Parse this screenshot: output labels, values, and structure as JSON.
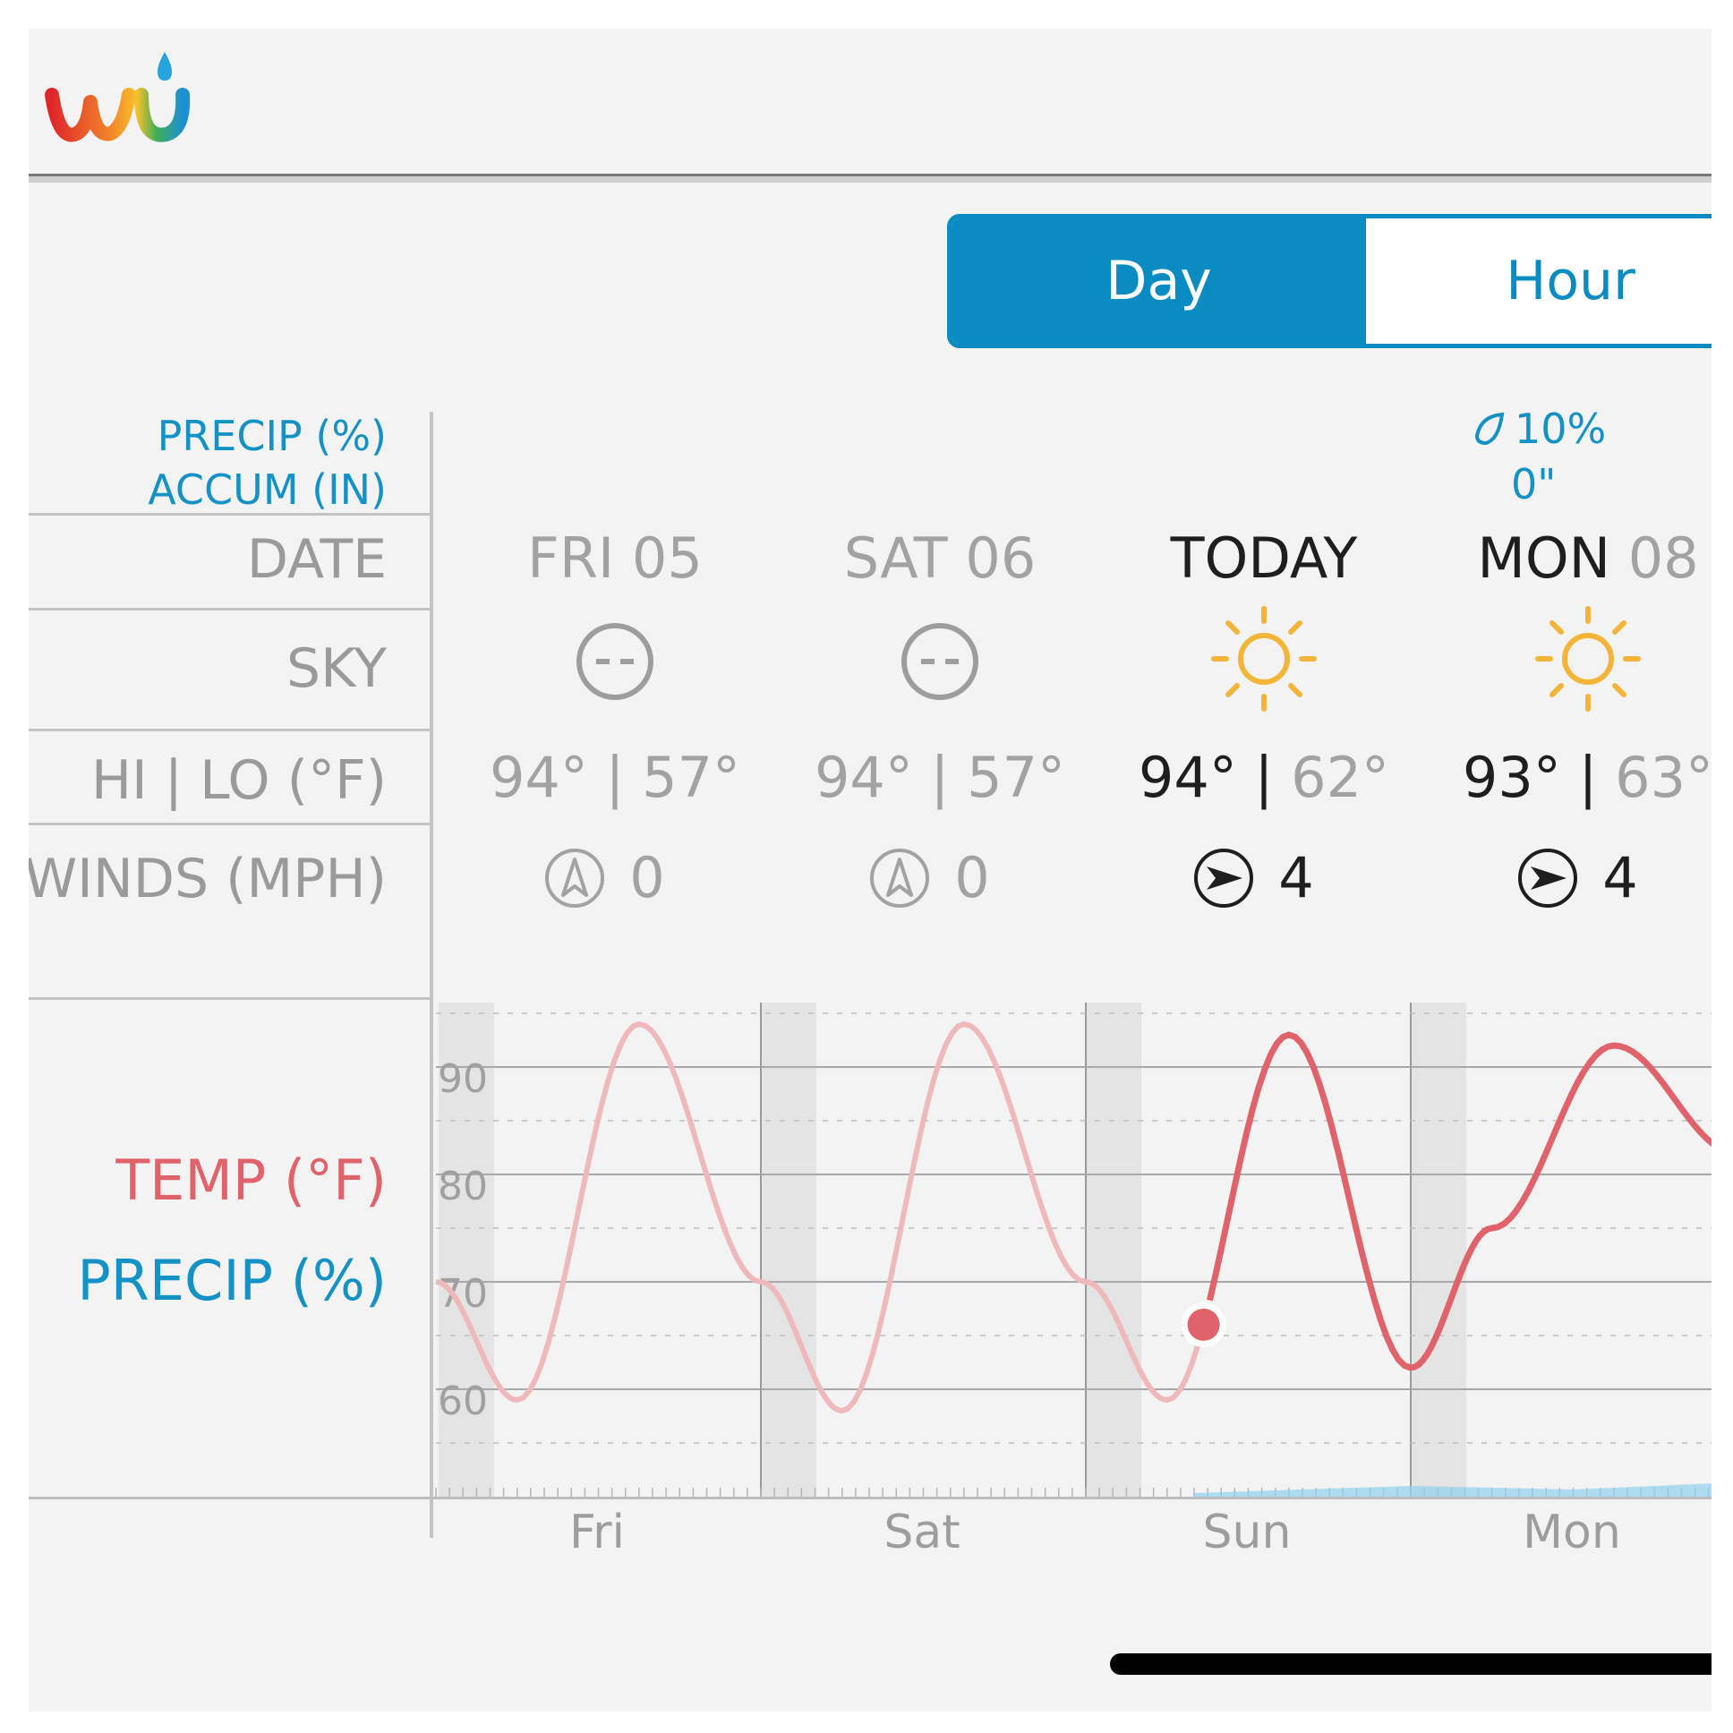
{
  "app": {
    "logo_icon": "wu-logo-icon"
  },
  "toggle": {
    "day_label": "Day",
    "hour_label": "Hour",
    "selected": "Day"
  },
  "labels": {
    "precip_pct": "PRECIP (%)",
    "accum_in": "ACCUM (IN)",
    "date": "DATE",
    "sky": "SKY",
    "hilo": "HI | LO (°F)",
    "winds": "WINDS (MPH)",
    "temp": "TEMP (°F)",
    "precip": "PRECIP (%)"
  },
  "days": [
    {
      "date": "FRI 05",
      "date_day": "FRI",
      "date_num": "05",
      "sky_icon": "cloudy-icon",
      "hi": "94°",
      "lo": "57°",
      "wind_icon": "wind-direction-north-icon",
      "wind": "0"
    },
    {
      "date": "SAT 06",
      "date_day": "SAT",
      "date_num": "06",
      "sky_icon": "cloudy-icon",
      "hi": "94°",
      "lo": "57°",
      "wind_icon": "wind-direction-north-icon",
      "wind": "0"
    },
    {
      "date": "TODAY",
      "date_day": "TODAY",
      "date_num": "",
      "sky_icon": "sun-icon",
      "hi": "94°",
      "lo": "62°",
      "wind_icon": "wind-direction-east-icon",
      "wind": "4"
    },
    {
      "date": "MON 08",
      "date_day": "MON",
      "date_num": "08",
      "sky_icon": "sun-icon",
      "hi": "93°",
      "lo": "63°",
      "wind_icon": "wind-direction-east-icon",
      "wind": "4",
      "precip_pct": "10%",
      "accum": "0\""
    }
  ],
  "chart_data": {
    "type": "line",
    "y_ticks": [
      "90",
      "80",
      "70",
      "60"
    ],
    "ylim": [
      50,
      96
    ],
    "x_labels": [
      "Fri",
      "Sat",
      "Sun",
      "Mon"
    ],
    "series": [
      {
        "name": "TEMP (°F)",
        "color": "#e0626b",
        "x_hours": [
          0,
          6,
          15,
          24,
          30,
          39,
          48,
          54,
          63,
          72,
          78,
          87,
          96,
          99
        ],
        "values": [
          70,
          59,
          94,
          70,
          58,
          94,
          70,
          59,
          93,
          62,
          75,
          92,
          82,
          70
        ]
      },
      {
        "name": "PRECIP (%)",
        "color": "#8fd0ee",
        "x_hours": [
          56,
          72,
          84,
          96
        ],
        "values": [
          0,
          2,
          1,
          3
        ]
      }
    ],
    "current_hour": 57,
    "grid": true
  }
}
